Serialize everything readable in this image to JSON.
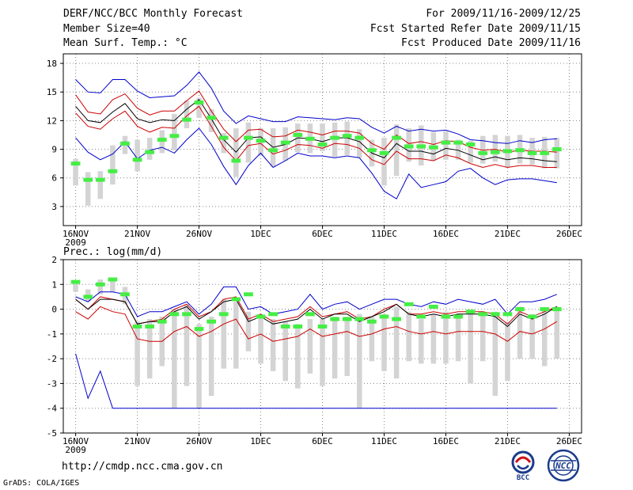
{
  "header": {
    "title": "DERF/NCC/BCC Monthly Forecast",
    "member_size": "Member Size=40",
    "variable": "Mean Surf. Temp.: °C",
    "period": "For 2009/11/16-2009/12/25",
    "start_date": "Fcst Started Refer Date 2009/11/15",
    "produced_date": "Fcst Produced Date 2009/11/16"
  },
  "footer": {
    "url": "http://cmdp.ncc.cma.gov.cn",
    "credit": "GrADS: COLA/IGES",
    "logo_bcc": "BCC",
    "logo_ncc": "NCC"
  },
  "colors": {
    "blue": "#0000cc",
    "red": "#cc0000",
    "mean": "#000000",
    "obs": "#44ee44",
    "box": "#d4d4d4",
    "grid": "#888888"
  },
  "chart_data": [
    {
      "type": "line",
      "title": "Mean Surf. Temp.: °C",
      "ylabel": "°C",
      "ylim": [
        1,
        19
      ],
      "yticks": [
        3,
        6,
        9,
        12,
        15,
        18
      ],
      "xlim": [
        0,
        40
      ],
      "xticks": [
        {
          "day": 0,
          "label": "16NOV",
          "sub": "2009"
        },
        {
          "day": 5,
          "label": "21NOV"
        },
        {
          "day": 10,
          "label": "26NOV"
        },
        {
          "day": 15,
          "label": "1DEC"
        },
        {
          "day": 20,
          "label": "6DEC"
        },
        {
          "day": 25,
          "label": "11DEC"
        },
        {
          "day": 30,
          "label": "16DEC"
        },
        {
          "day": 35,
          "label": "21DEC"
        },
        {
          "day": 40,
          "label": "26DEC"
        }
      ],
      "grid": true,
      "box_low": [
        5.2,
        3.1,
        3.8,
        5.3,
        8.5,
        6.7,
        7.9,
        8.6,
        8.9,
        11.2,
        12.3,
        10.8,
        8.6,
        6.1,
        7.6,
        8.3,
        7.2,
        7.8,
        8.7,
        8.6,
        8.8,
        8.2,
        8.4,
        8.1,
        7.2,
        5.2,
        6.2,
        7.7,
        7.3,
        7.8,
        7.9,
        7.9,
        7.6,
        7.5,
        7.7,
        7.1,
        7.5,
        7.4,
        7.0,
        7.0
      ],
      "box_high": [
        8.0,
        6.6,
        6.7,
        9.4,
        10.4,
        10.0,
        10.2,
        11.0,
        12.7,
        14.1,
        14.4,
        13.2,
        10.7,
        11.2,
        11.8,
        11.2,
        11.2,
        11.3,
        11.7,
        11.7,
        11.7,
        11.8,
        11.9,
        11.1,
        10.0,
        10.2,
        11.6,
        11.2,
        11.5,
        10.8,
        10.9,
        10.0,
        9.9,
        10.4,
        10.5,
        10.4,
        10.5,
        10.2,
        10.3,
        10.2
      ],
      "series": [
        {
          "name": "ensemble max",
          "color": "#0000cc",
          "values": [
            16.3,
            15.0,
            14.9,
            16.3,
            16.3,
            15.1,
            14.4,
            14.5,
            14.6,
            15.7,
            17.1,
            15.4,
            13.0,
            11.7,
            12.5,
            12.2,
            11.9,
            11.9,
            12.4,
            12.3,
            12.2,
            12.1,
            12.3,
            12.2,
            11.3,
            10.7,
            11.4,
            10.9,
            11.1,
            10.9,
            11.0,
            10.6,
            10.0,
            9.9,
            9.7,
            9.6,
            9.9,
            9.7,
            10.0,
            10.1
          ]
        },
        {
          "name": "upper spread",
          "color": "#cc0000",
          "values": [
            14.7,
            12.9,
            12.7,
            14.2,
            14.8,
            13.3,
            12.6,
            13.0,
            13.0,
            14.1,
            15.1,
            13.0,
            11.1,
            9.8,
            11.0,
            11.1,
            10.3,
            10.4,
            11.0,
            10.8,
            10.5,
            10.9,
            10.9,
            10.7,
            9.6,
            9.0,
            10.5,
            9.6,
            9.8,
            9.5,
            9.9,
            9.8,
            9.2,
            8.9,
            9.0,
            8.7,
            8.9,
            8.8,
            8.8,
            8.7
          ]
        },
        {
          "name": "ensemble mean",
          "color": "#000000",
          "values": [
            13.5,
            12.0,
            11.8,
            12.9,
            13.8,
            12.2,
            11.8,
            12.1,
            12.0,
            13.2,
            14.2,
            12.2,
            10.0,
            8.7,
            10.2,
            10.3,
            9.2,
            9.5,
            10.2,
            10.1,
            9.8,
            10.2,
            10.2,
            9.8,
            8.6,
            8.1,
            9.6,
            8.8,
            8.8,
            8.5,
            9.1,
            8.9,
            8.4,
            7.9,
            8.2,
            7.9,
            8.1,
            8.0,
            7.8,
            7.7
          ]
        },
        {
          "name": "lower spread",
          "color": "#cc0000",
          "values": [
            12.8,
            11.4,
            11.1,
            12.2,
            13.0,
            11.4,
            10.8,
            11.3,
            11.2,
            12.5,
            13.5,
            11.4,
            9.2,
            7.8,
            9.4,
            9.6,
            8.5,
            8.9,
            9.5,
            9.4,
            9.1,
            9.6,
            9.5,
            9.1,
            7.9,
            7.4,
            8.8,
            8.0,
            8.0,
            7.8,
            8.4,
            8.1,
            7.5,
            7.1,
            7.4,
            7.1,
            7.3,
            7.3,
            7.1,
            7.1
          ]
        },
        {
          "name": "ensemble min",
          "color": "#0000cc",
          "values": [
            10.2,
            8.7,
            7.9,
            8.5,
            9.8,
            8.0,
            8.9,
            9.2,
            8.6,
            10.0,
            11.2,
            9.5,
            7.2,
            5.3,
            7.3,
            8.6,
            7.1,
            7.8,
            8.6,
            8.3,
            8.3,
            8.1,
            8.3,
            8.1,
            6.5,
            4.6,
            3.8,
            6.4,
            5.0,
            5.3,
            5.6,
            6.7,
            7.0,
            6.0,
            5.3,
            5.8,
            5.9,
            5.9,
            5.7,
            5.5
          ]
        }
      ],
      "observed": [
        7.5,
        5.8,
        5.8,
        6.7,
        9.6,
        7.9,
        8.7,
        10.0,
        10.4,
        12.1,
        13.9,
        12.3,
        10.2,
        7.8,
        10.2,
        9.9,
        8.9,
        9.7,
        10.5,
        10.1,
        9.5,
        10.2,
        10.4,
        10.2,
        8.9,
        8.6,
        10.2,
        9.3,
        9.3,
        9.2,
        9.7,
        9.7,
        9.5,
        8.6,
        8.7,
        8.8,
        8.9,
        8.6,
        8.6,
        9.0
      ]
    },
    {
      "type": "line",
      "title": "Prec.: log(mm/d)",
      "ylabel": "log(mm/d)",
      "ylim": [
        -5,
        2
      ],
      "yticks": [
        -5,
        -4,
        -3,
        -2,
        -1,
        0,
        1,
        2
      ],
      "xlim": [
        0,
        40
      ],
      "xticks": [
        {
          "day": 0,
          "label": "16NOV",
          "sub": "2009"
        },
        {
          "day": 5,
          "label": "21NOV"
        },
        {
          "day": 10,
          "label": "26NOV"
        },
        {
          "day": 15,
          "label": "1DEC"
        },
        {
          "day": 20,
          "label": "6DEC"
        },
        {
          "day": 25,
          "label": "11DEC"
        },
        {
          "day": 30,
          "label": "16DEC"
        },
        {
          "day": 35,
          "label": "21DEC"
        },
        {
          "day": 40,
          "label": "26DEC"
        }
      ],
      "grid": true,
      "box_low": [
        0.7,
        0.3,
        0.6,
        0.7,
        0.2,
        -3.1,
        -2.8,
        -2.3,
        -4.0,
        -3.1,
        -4.0,
        -3.5,
        -2.4,
        -2.4,
        -1.7,
        -2.2,
        -2.5,
        -2.9,
        -3.2,
        -2.6,
        -3.1,
        -2.8,
        -2.7,
        -4.0,
        -2.1,
        -2.5,
        -2.8,
        -2.1,
        -2.2,
        -2.2,
        -2.2,
        -2.1,
        -3.0,
        -2.1,
        -3.5,
        -2.9,
        -2.0,
        -2.0,
        -2.3,
        -2.0
      ],
      "box_high": [
        1.1,
        0.8,
        1.2,
        1.2,
        0.9,
        -0.5,
        -0.4,
        -0.3,
        0.0,
        0.2,
        -0.6,
        -0.3,
        0.4,
        0.3,
        -0.1,
        -0.2,
        -0.4,
        -0.5,
        -0.6,
        -0.4,
        -0.4,
        -0.3,
        -0.3,
        -0.2,
        -0.3,
        -0.2,
        0.1,
        -0.1,
        -0.4,
        -0.2,
        -0.1,
        -0.2,
        -0.1,
        -0.1,
        -0.1,
        -0.5,
        0.1,
        -0.2,
        0.0,
        0.1
      ],
      "series": [
        {
          "name": "ensemble max",
          "color": "#0000cc",
          "values": [
            0.5,
            0.3,
            0.7,
            0.7,
            0.6,
            -0.3,
            -0.1,
            -0.1,
            0.1,
            0.3,
            -0.2,
            0.2,
            0.9,
            0.9,
            0.0,
            0.1,
            -0.2,
            -0.1,
            0.0,
            0.6,
            0.0,
            0.2,
            0.3,
            0.0,
            0.2,
            0.4,
            0.4,
            0.2,
            0.1,
            0.3,
            0.2,
            0.4,
            0.3,
            0.2,
            0.4,
            -0.2,
            0.3,
            0.3,
            0.4,
            0.6
          ]
        },
        {
          "name": "upper spread",
          "color": "#cc0000",
          "values": [
            0.4,
            0.0,
            0.5,
            0.4,
            0.3,
            -0.6,
            -0.5,
            -0.4,
            0.0,
            0.2,
            -0.3,
            -0.1,
            0.4,
            0.5,
            -0.4,
            -0.2,
            -0.5,
            -0.4,
            -0.3,
            0.1,
            -0.3,
            -0.2,
            -0.1,
            -0.4,
            -0.3,
            0.0,
            0.2,
            -0.2,
            -0.2,
            -0.1,
            -0.2,
            -0.1,
            -0.1,
            -0.1,
            -0.2,
            -0.6,
            -0.1,
            -0.3,
            -0.1,
            0.1
          ]
        },
        {
          "name": "ensemble mean",
          "color": "#000000",
          "values": [
            0.4,
            0.0,
            0.4,
            0.4,
            0.3,
            -0.6,
            -0.5,
            -0.5,
            -0.1,
            0.1,
            -0.4,
            -0.1,
            0.3,
            0.4,
            -0.5,
            -0.3,
            -0.6,
            -0.5,
            -0.4,
            0.0,
            -0.4,
            -0.2,
            -0.2,
            -0.5,
            -0.3,
            -0.1,
            0.2,
            -0.2,
            -0.3,
            -0.2,
            -0.3,
            -0.2,
            -0.2,
            -0.2,
            -0.3,
            -0.7,
            -0.2,
            -0.4,
            -0.2,
            0.1
          ]
        },
        {
          "name": "lower spread",
          "color": "#cc0000",
          "values": [
            -0.1,
            -0.4,
            0.1,
            -0.1,
            -0.2,
            -1.2,
            -1.3,
            -1.3,
            -0.9,
            -0.7,
            -1.1,
            -0.9,
            -0.6,
            -0.4,
            -1.2,
            -1.0,
            -1.3,
            -1.2,
            -1.1,
            -0.8,
            -1.1,
            -1.0,
            -0.9,
            -1.1,
            -1.0,
            -0.8,
            -0.7,
            -0.9,
            -1.0,
            -0.9,
            -1.0,
            -0.9,
            -0.9,
            -0.9,
            -1.0,
            -1.3,
            -0.9,
            -1.0,
            -0.8,
            -0.5
          ]
        },
        {
          "name": "ensemble min",
          "color": "#0000cc",
          "values": [
            -1.8,
            -3.6,
            -2.5,
            -4.0,
            -4.0,
            -4.0,
            -4.0,
            -4.0,
            -4.0,
            -4.0,
            -4.0,
            -4.0,
            -4.0,
            -4.0,
            -4.0,
            -4.0,
            -4.0,
            -4.0,
            -4.0,
            -4.0,
            -4.0,
            -4.0,
            -4.0,
            -4.0,
            -4.0,
            -4.0,
            -4.0,
            -4.0,
            -4.0,
            -4.0,
            -4.0,
            -4.0,
            -4.0,
            -4.0,
            -4.0,
            -4.0,
            -4.0,
            -4.0,
            -4.0,
            -4.0
          ]
        }
      ],
      "observed": [
        1.1,
        0.5,
        1.0,
        1.2,
        0.6,
        -0.7,
        -0.7,
        -0.5,
        -0.2,
        -0.2,
        -0.8,
        -0.5,
        -0.2,
        0.4,
        0.6,
        -0.3,
        -0.2,
        -0.7,
        -0.7,
        -0.2,
        -0.7,
        -0.4,
        -0.4,
        -0.4,
        -0.5,
        -0.3,
        -0.4,
        0.2,
        -0.3,
        0.1,
        -0.3,
        -0.3,
        -0.1,
        -0.2,
        -0.2,
        -0.2,
        0.0,
        -0.3,
        0.0,
        0.0
      ]
    }
  ]
}
